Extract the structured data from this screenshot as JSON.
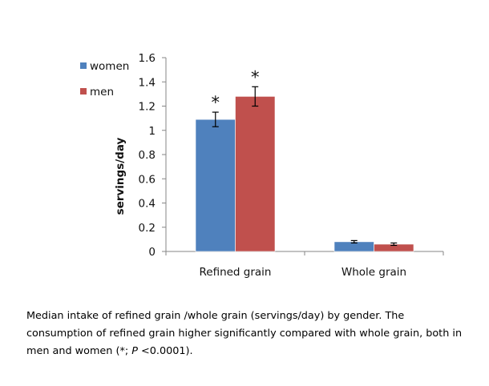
{
  "chart_data": {
    "type": "bar",
    "categories": [
      "Refined grain",
      "Whole grain"
    ],
    "series": [
      {
        "name": "women",
        "values": [
          1.09,
          0.08
        ],
        "errors": [
          0.06,
          0.01
        ],
        "color": "#4F81BD"
      },
      {
        "name": "men",
        "values": [
          1.28,
          0.06
        ],
        "errors": [
          0.08,
          0.01
        ],
        "color": "#C0504D"
      }
    ],
    "significance": [
      "*",
      "*"
    ],
    "significance_markers": [
      {
        "category": 0,
        "series": 0,
        "label": "*"
      },
      {
        "category": 0,
        "series": 1,
        "label": "*"
      }
    ],
    "title": "",
    "xlabel": "",
    "ylabel": "servings/day",
    "ylim": [
      0,
      1.6
    ],
    "yticks": [
      "0",
      "0.2",
      "0.4",
      "0.6",
      "0.8",
      "1",
      "1.2",
      "1.4",
      "1.6"
    ],
    "grid": false,
    "legend_position": "top-left"
  },
  "caption": {
    "line1": "Median intake of refined grain /whole grain (servings/day) by gender.  The",
    "line2": "consumption of refined grain higher significantly compared with whole grain, both in",
    "line3_pre": "men and women (*; ",
    "line3_p": "P",
    "line3_post": " <0.0001)."
  }
}
